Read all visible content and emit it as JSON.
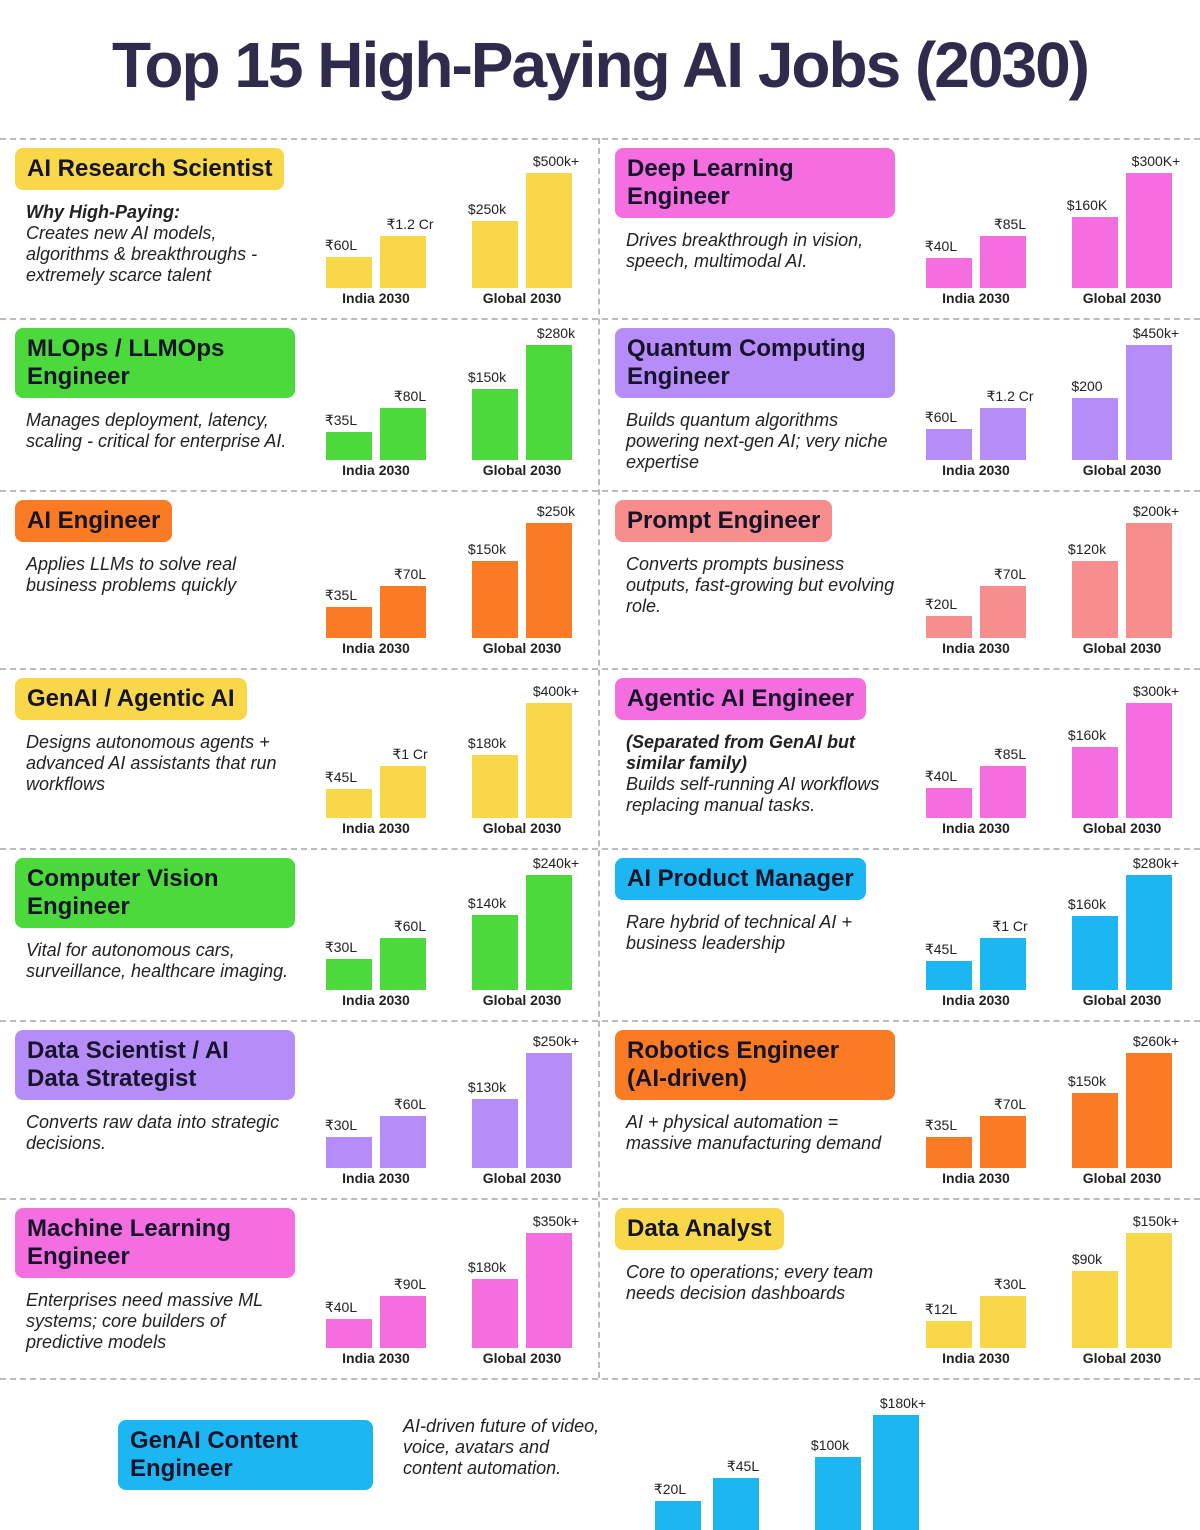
{
  "title": "Top 15 High-Paying AI Jobs (2030)",
  "group_labels": {
    "india": "India 2030",
    "global": "Global 2030"
  },
  "colors": {
    "yellow": "#f8d748",
    "pink": "#f46ee0",
    "green": "#4bd93b",
    "purple": "#b58cf8",
    "orange": "#fb7a24",
    "salmon": "#f78d8d",
    "blue": "#1cb7f2"
  },
  "chart_data": [
    {
      "type": "bar",
      "title": "AI Research Scientist",
      "color": "yellow",
      "why": "Why High-Paying:",
      "desc": "Creates new AI models, algorithms & breakthroughs - extremely scarce talent",
      "india_labels": [
        "₹60L",
        "₹1.2 Cr"
      ],
      "india_lakh": [
        60,
        120
      ],
      "global_labels": [
        "$250k",
        "$500k+"
      ],
      "global_k": [
        250,
        500
      ]
    },
    {
      "type": "bar",
      "title": "Deep Learning Engineer",
      "color": "pink",
      "desc": "Drives breakthrough in vision, speech, multimodal AI.",
      "india_labels": [
        "₹40L",
        "₹85L"
      ],
      "india_lakh": [
        40,
        85
      ],
      "global_labels": [
        "$160K",
        "$300K+"
      ],
      "global_k": [
        160,
        300
      ]
    },
    {
      "type": "bar",
      "title": "MLOps / LLMOps Engineer",
      "color": "green",
      "desc": "Manages deployment, latency, scaling - critical for enterprise AI.",
      "india_labels": [
        "₹35L",
        "₹80L"
      ],
      "india_lakh": [
        35,
        80
      ],
      "global_labels": [
        "$150k",
        "$280k"
      ],
      "global_k": [
        150,
        280
      ]
    },
    {
      "type": "bar",
      "title": "Quantum Computing Engineer",
      "color": "purple",
      "desc": "Builds quantum algorithms powering next-gen AI; very niche expertise",
      "india_labels": [
        "₹60L",
        "₹1.2 Cr"
      ],
      "india_lakh": [
        60,
        120
      ],
      "global_labels": [
        "$200",
        "$450k+"
      ],
      "global_k": [
        200,
        450
      ]
    },
    {
      "type": "bar",
      "title": "AI Engineer",
      "color": "orange",
      "desc": "Applies LLMs to solve real business problems quickly",
      "india_labels": [
        "₹35L",
        "₹70L"
      ],
      "india_lakh": [
        35,
        70
      ],
      "global_labels": [
        "$150k",
        "$250k"
      ],
      "global_k": [
        150,
        250
      ]
    },
    {
      "type": "bar",
      "title": "Prompt Engineer",
      "color": "salmon",
      "desc": "Converts prompts business outputs, fast-growing but evolving role.",
      "india_labels": [
        "₹20L",
        "₹70L"
      ],
      "india_lakh": [
        20,
        70
      ],
      "global_labels": [
        "$120k",
        "$200k+"
      ],
      "global_k": [
        120,
        200
      ]
    },
    {
      "type": "bar",
      "title": "GenAI / Agentic AI",
      "color": "yellow",
      "desc": "Designs autonomous agents + advanced AI assistants that run workflows",
      "india_labels": [
        "₹45L",
        "₹1 Cr"
      ],
      "india_lakh": [
        45,
        100
      ],
      "global_labels": [
        "$180k",
        "$400k+"
      ],
      "global_k": [
        180,
        400
      ]
    },
    {
      "type": "bar",
      "title": "Agentic AI Engineer",
      "color": "pink",
      "why": "(Separated from GenAI but similar family)",
      "desc": "Builds self-running AI workflows replacing manual tasks.",
      "india_labels": [
        "₹40L",
        "₹85L"
      ],
      "india_lakh": [
        40,
        85
      ],
      "global_labels": [
        "$160k",
        "$300k+"
      ],
      "global_k": [
        160,
        300
      ]
    },
    {
      "type": "bar",
      "title": "Computer Vision Engineer",
      "color": "green",
      "desc": "Vital for autonomous cars, surveillance, healthcare imaging.",
      "india_labels": [
        "₹30L",
        "₹60L"
      ],
      "india_lakh": [
        30,
        60
      ],
      "global_labels": [
        "$140k",
        "$240k+"
      ],
      "global_k": [
        140,
        240
      ]
    },
    {
      "type": "bar",
      "title": "AI Product Manager",
      "color": "blue",
      "desc": "Rare hybrid of technical AI + business leadership",
      "india_labels": [
        "₹45L",
        "₹1 Cr"
      ],
      "india_lakh": [
        45,
        100
      ],
      "global_labels": [
        "$160k",
        "$280k+"
      ],
      "global_k": [
        160,
        280
      ]
    },
    {
      "type": "bar",
      "title": "Data Scientist / AI Data Strategist",
      "color": "purple",
      "desc": "Converts raw data into strategic decisions.",
      "india_labels": [
        "₹30L",
        "₹60L"
      ],
      "india_lakh": [
        30,
        60
      ],
      "global_labels": [
        "$130k",
        "$250k+"
      ],
      "global_k": [
        130,
        250
      ]
    },
    {
      "type": "bar",
      "title": "Robotics Engineer (AI-driven)",
      "color": "orange",
      "desc": "AI + physical automation = massive manufacturing demand",
      "india_labels": [
        "₹35L",
        "₹70L"
      ],
      "india_lakh": [
        35,
        70
      ],
      "global_labels": [
        "$150k",
        "$260k+"
      ],
      "global_k": [
        150,
        260
      ]
    },
    {
      "type": "bar",
      "title": "Machine Learning Engineer",
      "color": "pink",
      "desc": "Enterprises need massive ML systems; core builders of predictive models",
      "india_labels": [
        "₹40L",
        "₹90L"
      ],
      "india_lakh": [
        40,
        90
      ],
      "global_labels": [
        "$180k",
        "$350k+"
      ],
      "global_k": [
        180,
        350
      ]
    },
    {
      "type": "bar",
      "title": "Data Analyst",
      "color": "yellow",
      "desc": "Core to operations; every team needs decision dashboards",
      "india_labels": [
        "₹12L",
        "₹30L"
      ],
      "india_lakh": [
        12,
        30
      ],
      "global_labels": [
        "$90k",
        "$150k+"
      ],
      "global_k": [
        90,
        150
      ]
    },
    {
      "type": "bar",
      "title": "GenAI Content Engineer",
      "color": "blue",
      "desc": "AI-driven future of video, voice, avatars and content automation.",
      "india_labels": [
        "₹20L",
        "₹45L"
      ],
      "india_lakh": [
        20,
        45
      ],
      "global_labels": [
        "$100k",
        "$180k+"
      ],
      "global_k": [
        100,
        180
      ]
    }
  ]
}
